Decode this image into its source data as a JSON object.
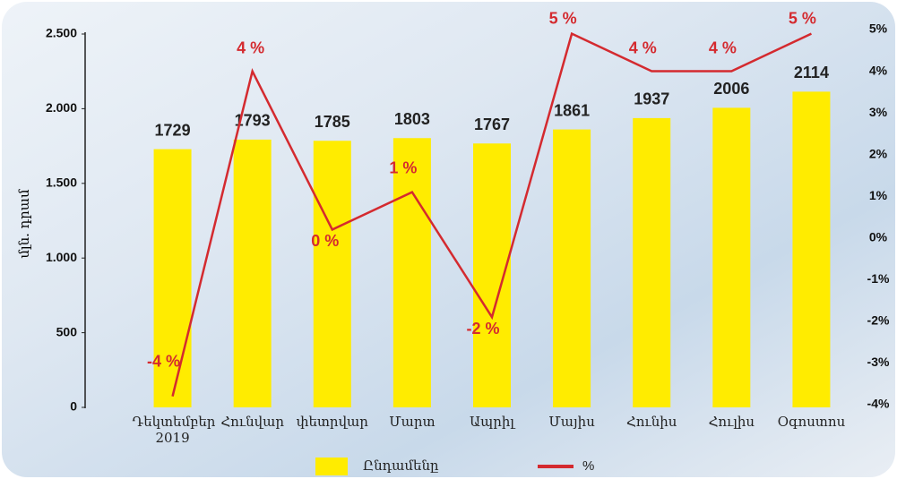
{
  "chart_data": {
    "type": "bar-line",
    "y_axis_label": "մլն. դրամ",
    "categories": [
      "Դեկտեմբեր 2019",
      "Հունվար",
      "փետրվար",
      "Մարտ",
      "Ապրիլ",
      "Մայիս",
      "Հունիս",
      "Հուլիս",
      "Օգոստոս"
    ],
    "series": [
      {
        "name": "Ընդամենը",
        "color": "#ffec00",
        "values": [
          1729,
          1793,
          1785,
          1803,
          1767,
          1861,
          1937,
          2006,
          2114
        ]
      },
      {
        "name": "%",
        "color": "#d42a2f",
        "axis": "y2",
        "values": [
          -3.8,
          4.0,
          0.2,
          1.1,
          -1.9,
          4.9,
          4.0,
          4.0,
          4.9
        ],
        "value_labels": [
          "-4 %",
          "4 %",
          "0 %",
          "1 %",
          "-2 %",
          "5 %",
          "4 %",
          "4 %",
          "5 %"
        ]
      }
    ],
    "ylim": [
      0,
      2500
    ],
    "yticks": [
      0,
      500,
      {
        "value": 1000,
        "label": "1.000"
      },
      {
        "value": 1500,
        "label": "1.500"
      },
      {
        "value": 2000,
        "label": "2.000"
      },
      {
        "value": 2500,
        "label": "2.500"
      }
    ],
    "y2lim": [
      -4,
      5
    ],
    "y2ticks": [
      {
        "value": -4,
        "label": "-4%"
      },
      {
        "value": -3,
        "label": "-3%"
      },
      {
        "value": -2,
        "label": "-2%"
      },
      {
        "value": -1,
        "label": "-1%"
      },
      {
        "value": 0,
        "label": "0%"
      },
      {
        "value": 1,
        "label": "1%"
      },
      {
        "value": 2,
        "label": "2%"
      },
      {
        "value": 3,
        "label": "3%"
      },
      {
        "value": 4,
        "label": "4%"
      },
      {
        "value": 5,
        "label": "5%"
      }
    ],
    "grid": false,
    "legend": "bottom"
  }
}
